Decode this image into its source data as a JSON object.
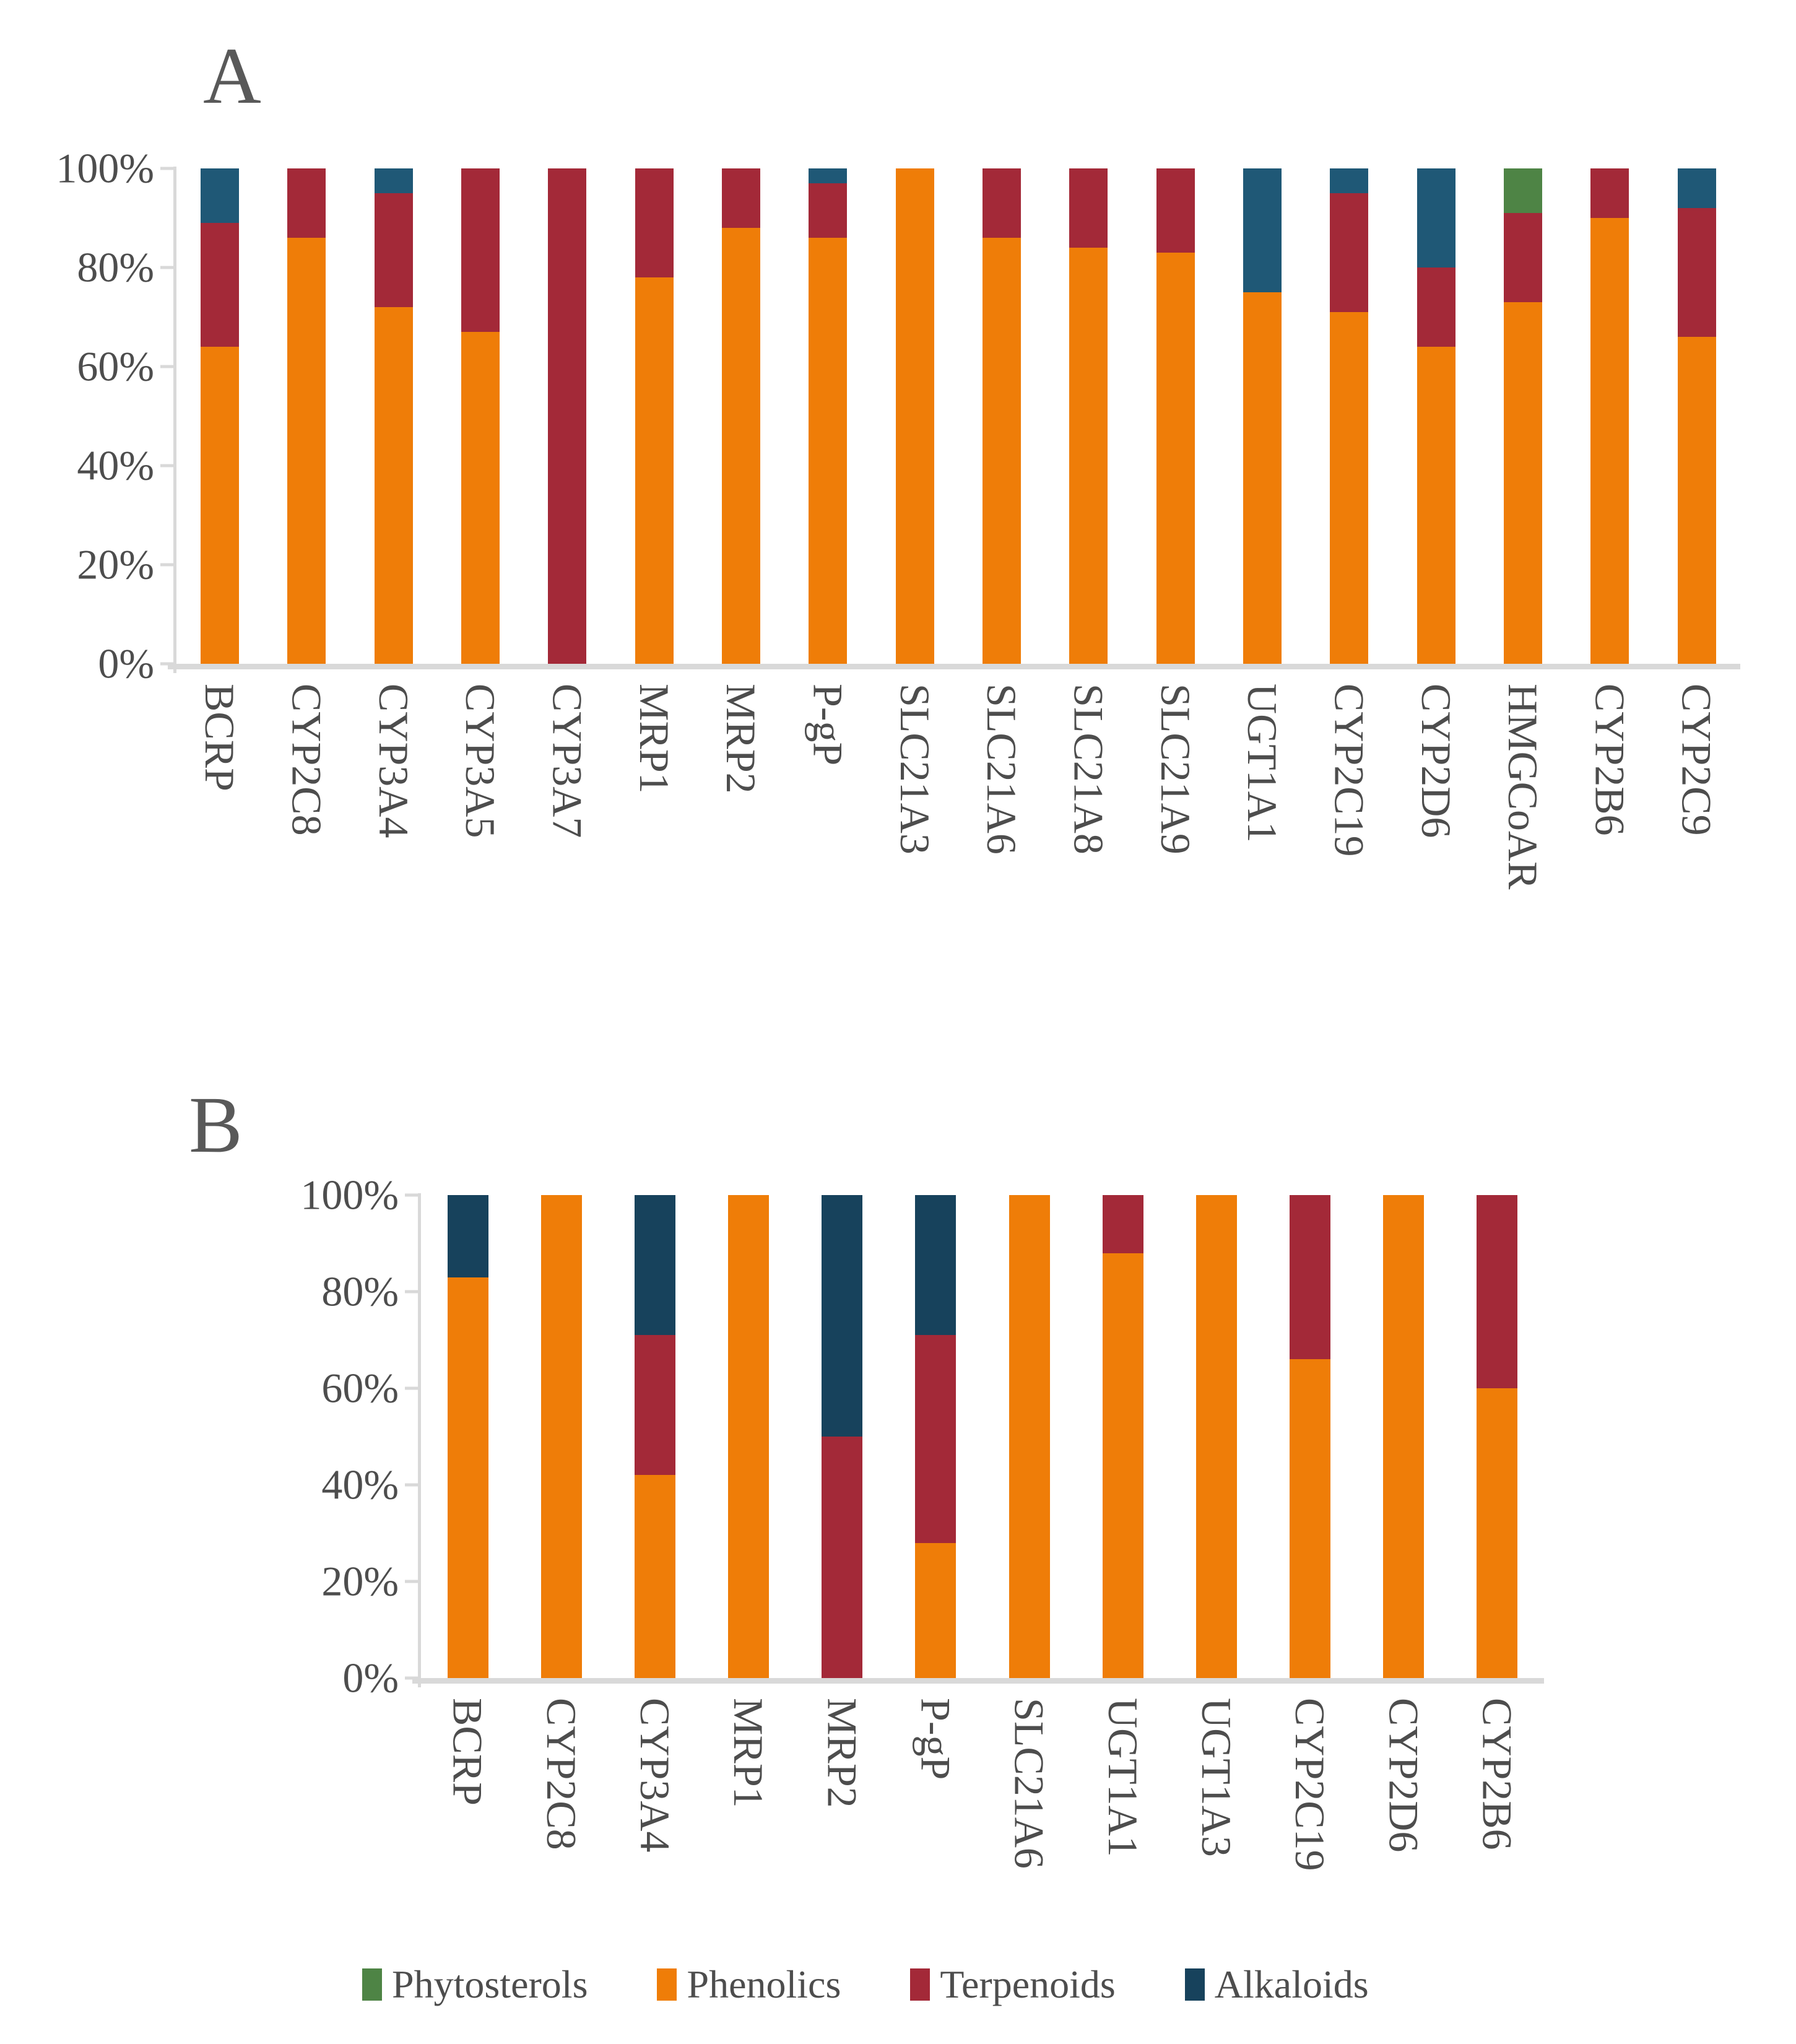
{
  "page": {
    "background": "#FFFFFF",
    "panel_a_letter": "A",
    "panel_b_letter": "B"
  },
  "colors": {
    "phytosterols": "#4E8445",
    "phenolics": "#EF7D08",
    "terpenoids": "#A32938",
    "alkaloids_chart_a": "#1F5876",
    "alkaloids_chart_b": "#17425C",
    "axis_line": "#D9D9D9",
    "text": "#4D4D4D"
  },
  "legend": {
    "items": [
      {
        "label": "Phytosterols",
        "color": "#4E8445"
      },
      {
        "label": "Phenolics",
        "color": "#EF7D08"
      },
      {
        "label": "Terpenoids",
        "color": "#A32938"
      },
      {
        "label": "Alkaloids",
        "color": "#17425C"
      }
    ]
  },
  "chart_data": [
    {
      "id": "A",
      "title": "A",
      "type": "bar",
      "stacked": true,
      "units": "percent",
      "grid": false,
      "ylim": [
        0,
        100
      ],
      "yticks": [
        "100%",
        "80%",
        "60%",
        "40%",
        "20%",
        "0%"
      ],
      "legend_position": "bottom-shared",
      "categories": [
        "BCRP",
        "CYP2C8",
        "CYP3A4",
        "CYP3A5",
        "CYP3A7",
        "MRP1",
        "MRP2",
        "P-gP",
        "SLC21A3",
        "SLC21A6",
        "SLC21A8",
        "SLC21A9",
        "UGT1A1",
        "CYP2C19",
        "CYP2D6",
        "HMGCoAR",
        "CYP2B6",
        "CYP2C9"
      ],
      "series": [
        {
          "name": "Phenolics",
          "color": "#EF7D08",
          "values": [
            64,
            86,
            72,
            67,
            0,
            78,
            88,
            86,
            100,
            86,
            84,
            83,
            75,
            71,
            64,
            73,
            90,
            66
          ]
        },
        {
          "name": "Terpenoids",
          "color": "#A32938",
          "values": [
            25,
            14,
            23,
            33,
            100,
            22,
            12,
            11,
            0,
            14,
            16,
            17,
            0,
            24,
            16,
            18,
            10,
            26
          ]
        },
        {
          "name": "Alkaloids",
          "color": "#1F5876",
          "values": [
            11,
            0,
            5,
            0,
            0,
            0,
            0,
            3,
            0,
            0,
            0,
            0,
            25,
            5,
            20,
            0,
            0,
            8
          ]
        },
        {
          "name": "Phytosterols",
          "color": "#4E8445",
          "values": [
            0,
            0,
            0,
            0,
            0,
            0,
            0,
            0,
            0,
            0,
            0,
            0,
            0,
            0,
            0,
            9,
            0,
            0
          ]
        }
      ]
    },
    {
      "id": "B",
      "title": "B",
      "type": "bar",
      "stacked": true,
      "units": "percent",
      "grid": false,
      "ylim": [
        0,
        100
      ],
      "yticks": [
        "100%",
        "80%",
        "60%",
        "40%",
        "20%",
        "0%"
      ],
      "legend_position": "bottom-shared",
      "categories": [
        "BCRP",
        "CYP2C8",
        "CYP3A4",
        "MRP1",
        "MRP2",
        "P-gP",
        "SLC21A6",
        "UGT1A1",
        "UGT1A3",
        "CYP2C19",
        "CYP2D6",
        "CYP2B6"
      ],
      "series": [
        {
          "name": "Phenolics",
          "color": "#EF7D08",
          "values": [
            83,
            100,
            42,
            100,
            0,
            28,
            100,
            88,
            100,
            66,
            100,
            60
          ]
        },
        {
          "name": "Terpenoids",
          "color": "#A32938",
          "values": [
            0,
            0,
            29,
            0,
            50,
            43,
            0,
            12,
            0,
            34,
            0,
            40
          ]
        },
        {
          "name": "Alkaloids",
          "color": "#17425C",
          "values": [
            17,
            0,
            29,
            0,
            50,
            29,
            0,
            0,
            0,
            0,
            0,
            0
          ]
        },
        {
          "name": "Phytosterols",
          "color": "#4E8445",
          "values": [
            0,
            0,
            0,
            0,
            0,
            0,
            0,
            0,
            0,
            0,
            0,
            0
          ]
        }
      ]
    }
  ]
}
